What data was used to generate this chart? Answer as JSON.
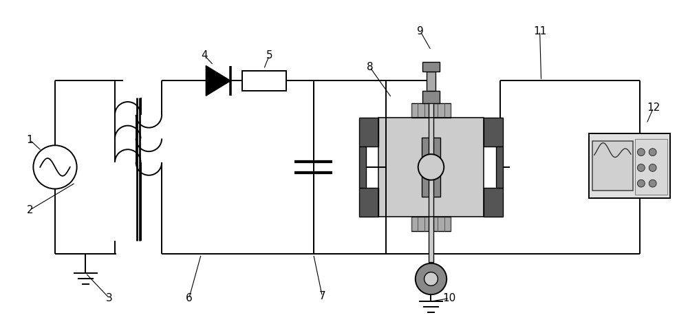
{
  "bg_color": "#ffffff",
  "lc": "#000000",
  "gray_dark": "#555555",
  "gray_mid": "#888888",
  "gray_light": "#aaaaaa",
  "gray_lighter": "#cccccc",
  "fig_width": 10.0,
  "fig_height": 4.71,
  "lw": 1.4
}
